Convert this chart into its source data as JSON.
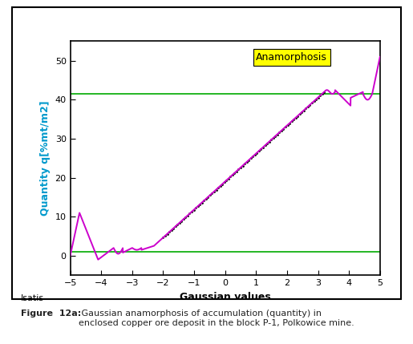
{
  "title": "",
  "xlabel": "Gaussian values",
  "ylabel": "Quantity q[%mt/m2]",
  "xlim": [
    -5,
    5
  ],
  "ylim": [
    -5,
    55
  ],
  "yticks": [
    0,
    10,
    20,
    30,
    40,
    50
  ],
  "xticks": [
    -5,
    -4,
    -3,
    -2,
    -1,
    0,
    1,
    2,
    3,
    4,
    5
  ],
  "hline1_y": 1.0,
  "hline2_y": 41.5,
  "hline_color": "#00aa00",
  "curve_color": "#cc00cc",
  "data_color": "#0000dd",
  "annotation_text": "Anamorphosis",
  "annotation_bg": "#ffff00",
  "isatis_label": "Isatis",
  "figure_caption_bold": "Figure  12a:",
  "figure_caption_rest": " Gaussian anamorphosis of accumulation (quantity) in\nenclosed copper ore deposit in the block P-1, Polkowice mine.",
  "bg_color": "#ffffff",
  "plot_bg": "#ffffff",
  "ylabel_color": "#0099cc",
  "axis_label_color": "#000000",
  "outer_box_color": "#000000"
}
